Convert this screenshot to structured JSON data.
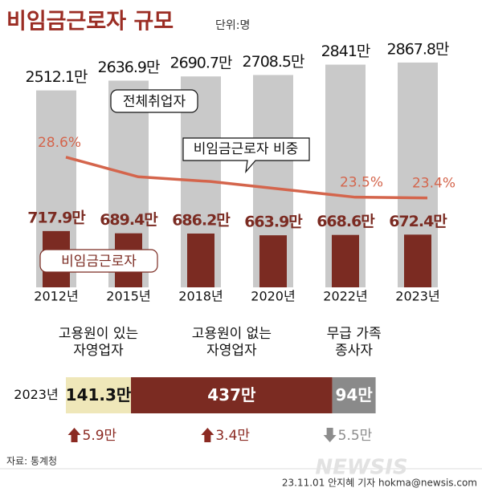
{
  "title": "비임금근로자 규모",
  "unit": "단위:명",
  "source": "자료: 통계청",
  "credit": "23.11.01 안지혜 기자 hokma@newsis.com",
  "logo": "NEWSIS",
  "chart_data": [
    {
      "type": "bar",
      "categories": [
        "2012년",
        "2015년",
        "2018년",
        "2020년",
        "2022년",
        "2023년"
      ],
      "ylim": [
        0,
        3000
      ],
      "y2lim": [
        12,
        42
      ],
      "series": [
        {
          "name": "전체취업자",
          "color": "#c9c9c9",
          "values": [
            2512.1,
            2636.9,
            2690.7,
            2708.5,
            2841,
            2867.8
          ],
          "value_labels": [
            "2512.1만",
            "2636.9만",
            "2690.7만",
            "2708.5만",
            "2841만",
            "2867.8만"
          ]
        },
        {
          "name": "비임금근로자",
          "color": "#7b2b22",
          "values": [
            717.9,
            689.4,
            686.2,
            663.9,
            668.6,
            672.4
          ],
          "value_labels": [
            "717.9만",
            "689.4만",
            "686.2만",
            "663.9만",
            "668.6만",
            "672.4만"
          ]
        },
        {
          "name": "비임금근로자 비중",
          "type": "line",
          "axis": "y2",
          "color": "#d4654c",
          "values": [
            28.6,
            26.1,
            25.5,
            24.5,
            23.5,
            23.4
          ],
          "value_labels": [
            "28.6%",
            null,
            null,
            null,
            "23.5%",
            "23.4%"
          ]
        }
      ]
    },
    {
      "type": "bar",
      "orientation": "horizontal",
      "stacked": true,
      "categories": [
        "2023년"
      ],
      "xlim": [
        0,
        680
      ],
      "change_colors": {
        "up": "#8b2a22",
        "down": "#8c8c8c"
      },
      "series": [
        {
          "name": "고용원이 있는\n자영업자",
          "color": "#efe7b9",
          "label_color": "#111111",
          "values": [
            141.3
          ],
          "value_labels": [
            "141.3만"
          ],
          "change": [
            {
              "value": 5.9,
              "label": "5.9만"
            }
          ]
        },
        {
          "name": "고용원이 없는\n자영업자",
          "color": "#7b2b22",
          "label_color": "#ffffff",
          "values": [
            437
          ],
          "value_labels": [
            "437만"
          ],
          "change": [
            {
              "value": 3.4,
              "label": "3.4만"
            }
          ]
        },
        {
          "name": "무급 가족\n종사자",
          "color": "#8a8a8a",
          "label_color": "#ffffff",
          "values": [
            94
          ],
          "value_labels": [
            "94만"
          ],
          "change": [
            {
              "value": -5.5,
              "label": "5.5만"
            }
          ]
        }
      ]
    }
  ]
}
